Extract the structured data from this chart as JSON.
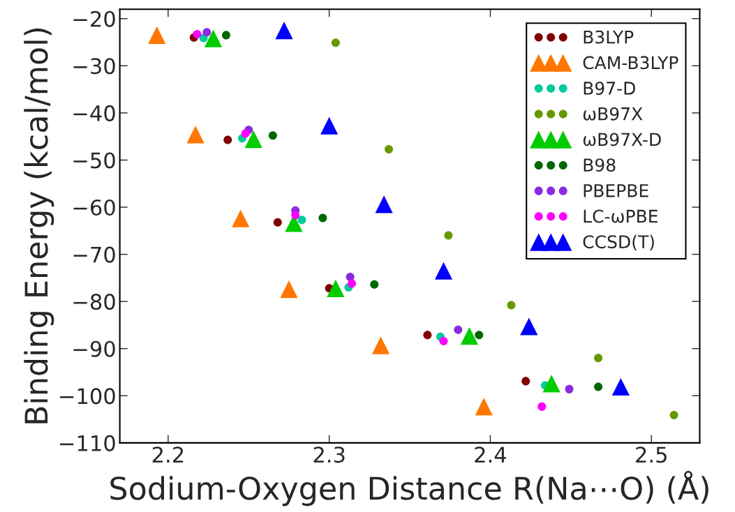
{
  "chart_data": {
    "type": "scatter",
    "xlabel": "Sodium-Oxygen Distance R(Na⋯O) (Å)",
    "ylabel": "Binding Energy (kcal/mol)",
    "xlim": [
      2.17,
      2.53
    ],
    "xticks": [
      2.2,
      2.3,
      2.4,
      2.5
    ],
    "ylim": [
      -110,
      -18
    ],
    "yticks": [
      -110,
      -100,
      -90,
      -80,
      -70,
      -60,
      -50,
      -40,
      -30,
      -20
    ],
    "grid": false,
    "legend": "top right",
    "series": [
      {
        "name": "B3LYP",
        "color": "#800000",
        "marker": "circle",
        "x": [
          2.216,
          2.237,
          2.268,
          2.3,
          2.361,
          2.422
        ],
        "values": [
          -24.0,
          -45.7,
          -63.2,
          -77.2,
          -87.1,
          -96.9
        ]
      },
      {
        "name": "CAM-B3LYP",
        "color": "#ff7700",
        "marker": "triangle",
        "x": [
          2.193,
          2.217,
          2.245,
          2.275,
          2.332,
          2.396
        ],
        "values": [
          -23.5,
          -44.6,
          -62.4,
          -77.4,
          -89.3,
          -102.3
        ]
      },
      {
        "name": "B97-D",
        "color": "#00cc99",
        "marker": "circle",
        "x": [
          2.222,
          2.246,
          2.283,
          2.312,
          2.369,
          2.434
        ],
        "values": [
          -24.1,
          -45.4,
          -62.7,
          -77.0,
          -87.5,
          -97.8
        ]
      },
      {
        "name": "ωB97X",
        "color": "#669900",
        "marker": "circle",
        "x": [
          2.304,
          2.337,
          2.374,
          2.413,
          2.467,
          2.514
        ],
        "values": [
          -25.1,
          -47.7,
          -66.0,
          -80.8,
          -92.0,
          -104.1
        ]
      },
      {
        "name": "ωB97X-D",
        "color": "#00cc00",
        "marker": "triangle",
        "x": [
          2.228,
          2.253,
          2.278,
          2.304,
          2.387,
          2.438
        ],
        "values": [
          -24.2,
          -45.6,
          -63.4,
          -77.2,
          -87.3,
          -97.4
        ]
      },
      {
        "name": "B98",
        "color": "#006600",
        "marker": "circle",
        "x": [
          2.236,
          2.265,
          2.296,
          2.328,
          2.393,
          2.467
        ],
        "values": [
          -23.5,
          -44.8,
          -62.3,
          -76.4,
          -87.1,
          -98.1
        ]
      },
      {
        "name": "PBEPBE",
        "color": "#8a2be2",
        "marker": "circle",
        "x": [
          2.224,
          2.25,
          2.279,
          2.313,
          2.38,
          2.449
        ],
        "values": [
          -22.9,
          -43.6,
          -60.7,
          -74.8,
          -86.0,
          -98.6
        ]
      },
      {
        "name": "LC-ωPBE",
        "color": "#ff00ff",
        "marker": "circle",
        "x": [
          2.218,
          2.248,
          2.279,
          2.314,
          2.371,
          2.432
        ],
        "values": [
          -23.3,
          -44.4,
          -61.7,
          -76.2,
          -88.4,
          -102.3
        ]
      },
      {
        "name": "CCSD(T)",
        "color": "#0000ff",
        "marker": "triangle",
        "x": [
          2.272,
          2.3,
          2.334,
          2.371,
          2.424,
          2.481
        ],
        "values": [
          -22.5,
          -42.7,
          -59.4,
          -73.5,
          -85.3,
          -98.1
        ]
      }
    ]
  }
}
